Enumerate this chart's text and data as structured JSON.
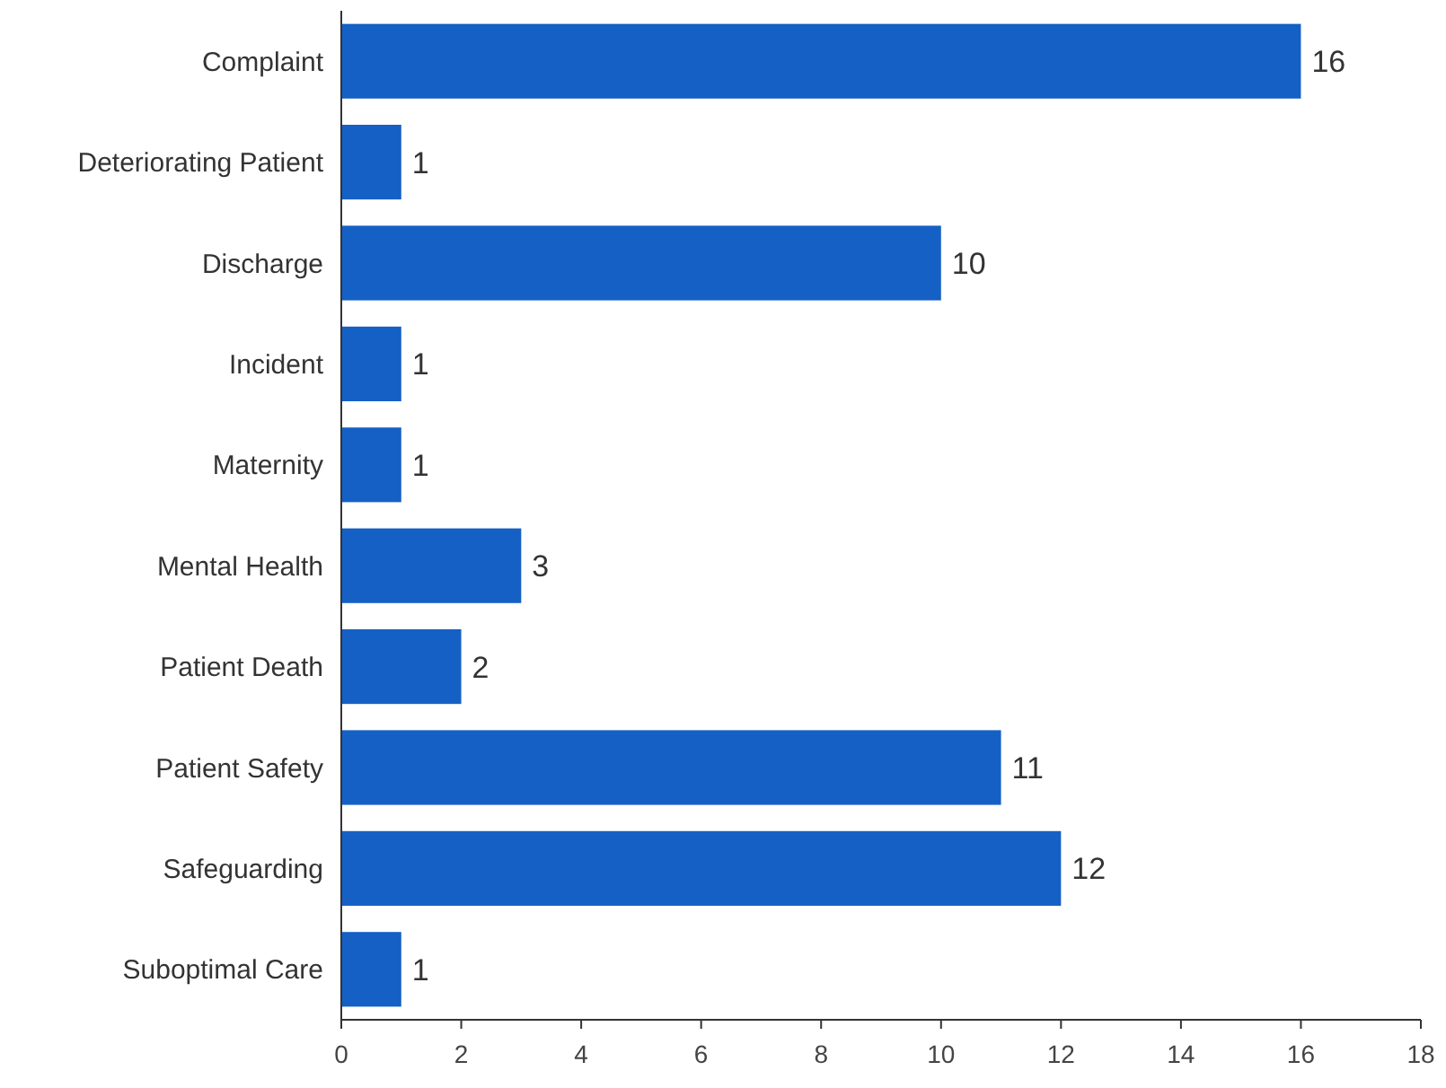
{
  "chart_data": {
    "type": "bar",
    "orientation": "horizontal",
    "categories": [
      "Complaint",
      "Deteriorating Patient",
      "Discharge",
      "Incident",
      "Maternity",
      "Mental Health",
      "Patient Death",
      "Patient Safety",
      "Safeguarding",
      "Suboptimal Care"
    ],
    "values": [
      16,
      1,
      10,
      1,
      1,
      3,
      2,
      11,
      12,
      1
    ],
    "color": "#1560c4",
    "xlim": [
      0,
      18
    ],
    "xticks": [
      0,
      2,
      4,
      6,
      8,
      10,
      12,
      14,
      16,
      18
    ],
    "data_labels": true
  }
}
